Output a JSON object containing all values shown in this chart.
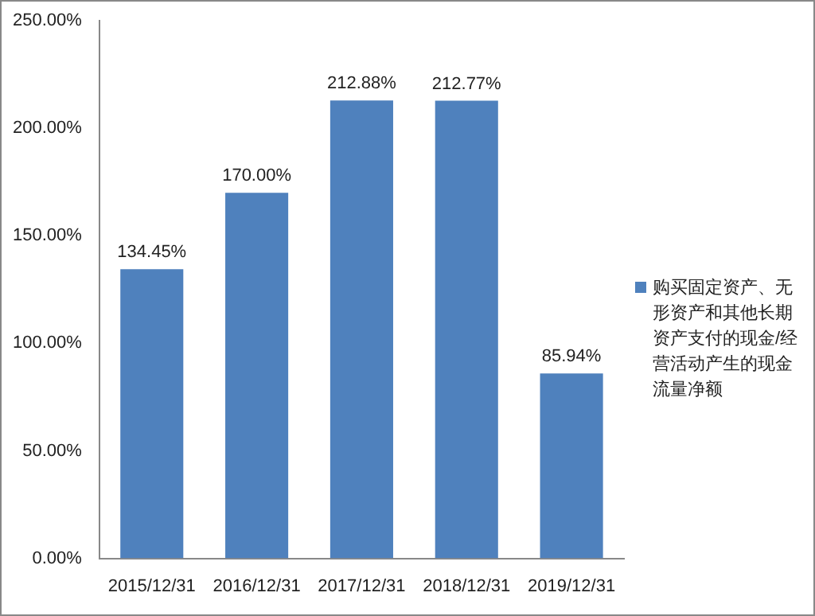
{
  "chart_data": {
    "type": "bar",
    "categories": [
      "2015/12/31",
      "2016/12/31",
      "2017/12/31",
      "2018/12/31",
      "2019/12/31"
    ],
    "series": [
      {
        "name": "购买固定资产、无形资产和其他长期资产支付的现金/经营活动产生的现金流量净额",
        "color": "#4f81bd",
        "values": [
          134.45,
          170.0,
          212.88,
          212.77,
          85.94
        ],
        "value_labels": [
          "134.45%",
          "170.00%",
          "212.88%",
          "212.77%",
          "85.94%"
        ]
      }
    ],
    "ylim": [
      0,
      250
    ],
    "yticks": [
      {
        "value": 0,
        "label": "0.00%"
      },
      {
        "value": 50,
        "label": "50.00%"
      },
      {
        "value": 100,
        "label": "100.00%"
      },
      {
        "value": 150,
        "label": "150.00%"
      },
      {
        "value": 200,
        "label": "200.00%"
      },
      {
        "value": 250,
        "label": "250.00%"
      }
    ],
    "grid": false,
    "legend": "right"
  }
}
